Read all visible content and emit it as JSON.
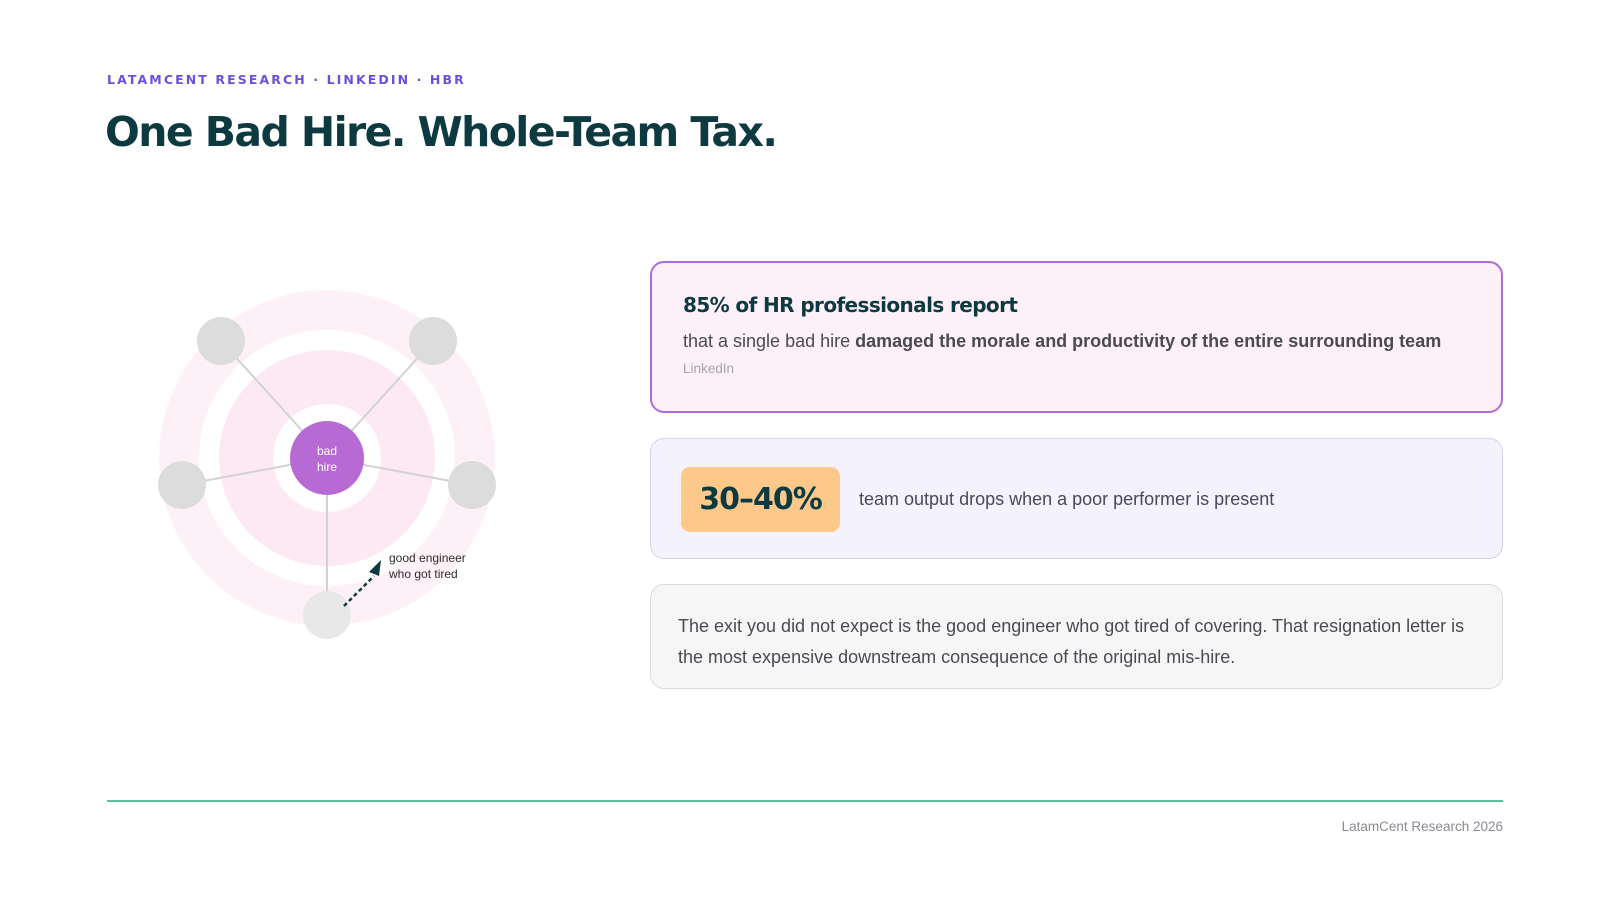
{
  "header": {
    "eyebrow": "LATAMCENT RESEARCH · LINKEDIN · HBR",
    "title": "One Bad Hire. Whole-Team Tax."
  },
  "diagram": {
    "center_line1": "bad",
    "center_line2": "hire",
    "annotation_line1": "good engineer",
    "annotation_line2": "who got tired",
    "center_color": "#b86ad4",
    "node_color": "#dcdcdc",
    "ring_color": "#fde9f4"
  },
  "stat_hr": {
    "title": "85% of HR professionals report",
    "body_prefix": "that a single bad hire ",
    "body_bold": "damaged the morale and productivity of the entire surrounding team",
    "source": "LinkedIn"
  },
  "stat_team": {
    "value": "30–40%",
    "text": "team output drops when a poor performer is present"
  },
  "quote": {
    "text": "The exit you did not expect is the good engineer who got tired of covering. That resignation letter is the most expensive downstream consequence of the original mis-hire."
  },
  "footer": {
    "credit": "LatamCent Research 2026"
  },
  "colors": {
    "accent": "#6d4fe0",
    "heading": "#0d3a40",
    "hr_card_bg": "#fdf0f8",
    "hr_card_border": "#b26bd6",
    "team_card_bg": "#f4f2fd",
    "pill": "#fdc98a",
    "divider": "#5dbfa0"
  }
}
